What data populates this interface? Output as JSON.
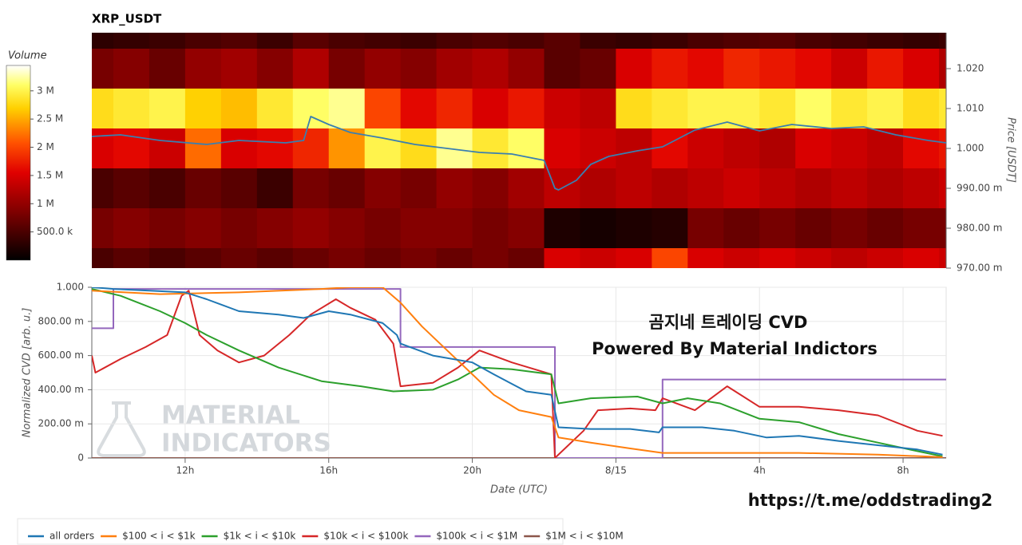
{
  "chart_data": [
    {
      "type": "heatmap",
      "title": "XRP_USDT",
      "ylabel": "Price [USDT]",
      "colorbar_title": "Volume",
      "x_bins": [
        9.4,
        10,
        11,
        12,
        13,
        14,
        15,
        16,
        17,
        18,
        19,
        20,
        21,
        22,
        23,
        24,
        25,
        26,
        27,
        28,
        29,
        30,
        31,
        32,
        33,
        33.2
      ],
      "y": [
        1.03,
        1.02,
        1.01,
        1.0,
        0.99,
        0.98,
        0.97
      ],
      "z": [
        [
          300000.0,
          350000.0,
          400000.0,
          500000.0,
          550000.0,
          400000.0,
          600000.0,
          500000.0,
          450000.0,
          400000.0,
          500000.0,
          550000.0,
          500000.0,
          600000.0,
          400000.0,
          350000.0,
          400000.0,
          500000.0,
          550000.0,
          600000.0,
          500000.0,
          450000.0,
          400000.0,
          350000.0,
          400000.0
        ],
        [
          800000.0,
          900000.0,
          700000.0,
          1000000.0,
          1100000.0,
          900000.0,
          1200000.0,
          800000.0,
          1000000.0,
          900000.0,
          1100000.0,
          1200000.0,
          1000000.0,
          600000.0,
          700000.0,
          1500000.0,
          1700000.0,
          1600000.0,
          1800000.0,
          1700000.0,
          1600000.0,
          1400000.0,
          1700000.0,
          1500000.0,
          1200000.0
        ],
        [
          2800000.0,
          2900000.0,
          3000000.0,
          2700000.0,
          2600000.0,
          2900000.0,
          3100000.0,
          3200000.0,
          2000000.0,
          1600000.0,
          1800000.0,
          1500000.0,
          1700000.0,
          1400000.0,
          1300000.0,
          2800000.0,
          2900000.0,
          3000000.0,
          3000000.0,
          2900000.0,
          3100000.0,
          2900000.0,
          3000000.0,
          2800000.0,
          2900000.0
        ],
        [
          1500000.0,
          1600000.0,
          1400000.0,
          2200000.0,
          1500000.0,
          1600000.0,
          1800000.0,
          2400000.0,
          3000000.0,
          2800000.0,
          3200000.0,
          2900000.0,
          3100000.0,
          1500000.0,
          1400000.0,
          1300000.0,
          1600000.0,
          1400000.0,
          1300000.0,
          1200000.0,
          1500000.0,
          1400000.0,
          1300000.0,
          1600000.0,
          1700000.0
        ],
        [
          500000.0,
          600000.0,
          500000.0,
          700000.0,
          600000.0,
          400000.0,
          800000.0,
          700000.0,
          900000.0,
          800000.0,
          1000000.0,
          900000.0,
          1100000.0,
          1300000.0,
          1200000.0,
          1300000.0,
          1200000.0,
          1300000.0,
          1400000.0,
          1300000.0,
          1200000.0,
          1300000.0,
          1200000.0,
          1300000.0,
          1400000.0
        ],
        [
          800000.0,
          900000.0,
          800000.0,
          900000.0,
          800000.0,
          900000.0,
          1000000.0,
          900000.0,
          800000.0,
          900000.0,
          900000.0,
          800000.0,
          900000.0,
          200000.0,
          150000.0,
          200000.0,
          250000.0,
          800000.0,
          700000.0,
          800000.0,
          700000.0,
          800000.0,
          700000.0,
          800000.0,
          800000.0
        ],
        [
          500000.0,
          600000.0,
          500000.0,
          600000.0,
          700000.0,
          600000.0,
          700000.0,
          800000.0,
          700000.0,
          800000.0,
          700000.0,
          800000.0,
          700000.0,
          1500000.0,
          1400000.0,
          1500000.0,
          2000000.0,
          1500000.0,
          1400000.0,
          1500000.0,
          1400000.0,
          1300000.0,
          1400000.0,
          1500000.0,
          1400000.0
        ]
      ],
      "clim": [
        0,
        3450000.0
      ],
      "colorscale": [
        [
          0,
          "#000000"
        ],
        [
          0.25,
          "#800000"
        ],
        [
          0.45,
          "#e00000"
        ],
        [
          0.6,
          "#ff5000"
        ],
        [
          0.78,
          "#ffd000"
        ],
        [
          0.9,
          "#ffff66"
        ],
        [
          1,
          "#ffffff"
        ]
      ],
      "colorbar_ticks": [
        {
          "value": 500000.0,
          "label": "500.0 k"
        },
        {
          "value": 1000000.0,
          "label": "1 M"
        },
        {
          "value": 1500000.0,
          "label": "1.5 M"
        },
        {
          "value": 2000000.0,
          "label": "2 M"
        },
        {
          "value": 2500000.0,
          "label": "2.5 M"
        },
        {
          "value": 3000000.0,
          "label": "3 M"
        }
      ],
      "xlim": [
        9.4,
        33.2
      ],
      "ylim": [
        0.97,
        1.029
      ],
      "yticks": [
        {
          "value": 0.97,
          "label": "970.00 m"
        },
        {
          "value": 0.98,
          "label": "980.00 m"
        },
        {
          "value": 0.99,
          "label": "990.00 m"
        },
        {
          "value": 1.0,
          "label": "1.000"
        },
        {
          "value": 1.01,
          "label": "1.010"
        },
        {
          "value": 1.02,
          "label": "1.020"
        }
      ],
      "series": [
        {
          "color": "#3a7fb0",
          "x": [
            9.4,
            10.2,
            11.3,
            12.6,
            13.5,
            14.8,
            15.3,
            15.5,
            16.0,
            16.6,
            17.5,
            18.4,
            19.3,
            20.2,
            21.1,
            22.0,
            22.3,
            22.4,
            22.9,
            23.3,
            23.8,
            24.6,
            25.3,
            26.2,
            27.1,
            28.0,
            28.9,
            30.0,
            30.9,
            31.8,
            32.7,
            33.2
          ],
          "values": [
            1.003,
            1.0034,
            1.002,
            1.001,
            1.002,
            1.0014,
            1.002,
            1.008,
            1.006,
            1.004,
            1.0026,
            1.001,
            1.0,
            0.999,
            0.9986,
            0.997,
            0.99,
            0.9896,
            0.992,
            0.996,
            0.998,
            0.9994,
            1.0004,
            1.0046,
            1.0066,
            1.0044,
            1.006,
            1.005,
            1.0054,
            1.0034,
            1.002,
            1.0014
          ]
        }
      ]
    },
    {
      "type": "line",
      "xlabel": "Date (UTC)",
      "ylabel": "Normalized CVD [arb. u.]",
      "xlim": [
        9.4,
        33.2
      ],
      "ylim": [
        0,
        1
      ],
      "xticks": [
        {
          "value": 12,
          "label": "12h"
        },
        {
          "value": 16,
          "label": "16h"
        },
        {
          "value": 20,
          "label": "20h"
        },
        {
          "value": 24,
          "label": "8/15"
        },
        {
          "value": 28,
          "label": "4h"
        },
        {
          "value": 32,
          "label": "8h"
        }
      ],
      "yticks": [
        0,
        {
          "value": 0.2,
          "label": "200.00 m"
        },
        {
          "value": 0.4,
          "label": "400.00 m"
        },
        {
          "value": 0.6,
          "label": "600.00 m"
        },
        {
          "value": 0.8,
          "label": "800.00 m"
        },
        {
          "value": 1,
          "label": "1.000"
        }
      ],
      "grid": true,
      "legend": "bottom-left",
      "annotations": [
        "곰지네 트레이딩 CVD",
        "Powered By Material Indictors"
      ],
      "watermark": [
        "MATERIAL",
        "INDICATORS"
      ],
      "link": "https://t.me/oddstrading2",
      "series": [
        {
          "name": "all orders",
          "color": "#1f77b4",
          "x": [
            9.4,
            10.0,
            11.0,
            12.0,
            12.6,
            13.5,
            14.6,
            15.3,
            16.0,
            16.6,
            17.5,
            17.9,
            18.0,
            18.9,
            20.0,
            20.6,
            21.5,
            22.2,
            22.4,
            23.3,
            24.4,
            25.2,
            25.3,
            26.4,
            27.3,
            28.2,
            29.1,
            30.2,
            31.3,
            32.4,
            33.1
          ],
          "values": [
            1.0,
            0.99,
            0.98,
            0.97,
            0.93,
            0.86,
            0.84,
            0.82,
            0.86,
            0.84,
            0.79,
            0.72,
            0.67,
            0.6,
            0.56,
            0.49,
            0.39,
            0.37,
            0.18,
            0.17,
            0.17,
            0.15,
            0.18,
            0.18,
            0.16,
            0.12,
            0.13,
            0.1,
            0.075,
            0.05,
            0.02
          ]
        },
        {
          "name": "$100 < i < $1k",
          "color": "#ff7f0e",
          "x": [
            9.4,
            11.3,
            13.5,
            15.8,
            16.6,
            17.5,
            18.0,
            18.6,
            19.3,
            20.0,
            20.6,
            21.3,
            22.2,
            22.4,
            23.3,
            24.4,
            25.3,
            26.9,
            29.1,
            31.3,
            33.1
          ],
          "values": [
            0.98,
            0.96,
            0.97,
            0.99,
            1.0,
            1.0,
            0.91,
            0.77,
            0.63,
            0.49,
            0.37,
            0.28,
            0.24,
            0.12,
            0.09,
            0.056,
            0.03,
            0.03,
            0.03,
            0.02,
            0.005
          ]
        },
        {
          "name": "$1k < i < $10k",
          "color": "#2ca02c",
          "x": [
            9.4,
            10.2,
            11.3,
            12.0,
            12.6,
            13.5,
            14.6,
            15.8,
            16.9,
            17.8,
            18.9,
            19.6,
            20.2,
            21.1,
            22.2,
            22.4,
            23.3,
            24.6,
            25.3,
            26.0,
            26.9,
            28.0,
            29.1,
            30.2,
            31.3,
            32.4,
            33.1
          ],
          "values": [
            0.99,
            0.95,
            0.86,
            0.79,
            0.72,
            0.63,
            0.53,
            0.45,
            0.42,
            0.39,
            0.4,
            0.46,
            0.53,
            0.52,
            0.49,
            0.32,
            0.35,
            0.36,
            0.32,
            0.35,
            0.32,
            0.23,
            0.21,
            0.14,
            0.09,
            0.04,
            0.01
          ]
        },
        {
          "name": "$10k < i < $100k",
          "color": "#d62728",
          "x": [
            9.4,
            9.5,
            10.2,
            10.9,
            11.5,
            11.9,
            12.1,
            12.4,
            12.9,
            13.5,
            14.2,
            14.9,
            15.5,
            16.2,
            16.6,
            17.3,
            17.8,
            18.0,
            18.9,
            19.6,
            20.2,
            21.1,
            22.2,
            22.3,
            23.1,
            23.5,
            24.4,
            25.1,
            25.3,
            26.2,
            27.1,
            28.0,
            29.1,
            30.2,
            31.3,
            32.4,
            33.1
          ],
          "values": [
            0.6,
            0.5,
            0.58,
            0.65,
            0.72,
            0.95,
            0.98,
            0.72,
            0.63,
            0.56,
            0.6,
            0.72,
            0.84,
            0.93,
            0.88,
            0.81,
            0.67,
            0.42,
            0.44,
            0.53,
            0.63,
            0.56,
            0.49,
            0,
            0.16,
            0.28,
            0.29,
            0.28,
            0.35,
            0.28,
            0.42,
            0.3,
            0.3,
            0.28,
            0.25,
            0.16,
            0.13
          ]
        },
        {
          "name": "$100k < i < $1M",
          "color": "#9467bd",
          "x": [
            9.4,
            10,
            10,
            18,
            18,
            22.3,
            22.3,
            25.3,
            25.3,
            33.2
          ],
          "values": [
            0.76,
            0.76,
            0.99,
            0.99,
            0.65,
            0.65,
            0,
            0,
            0.46,
            0.46
          ]
        },
        {
          "name": "$1M < i < $10M",
          "color": "#8c564b",
          "x": [
            9.4,
            33.2
          ],
          "values": [
            0,
            0
          ]
        }
      ]
    }
  ]
}
